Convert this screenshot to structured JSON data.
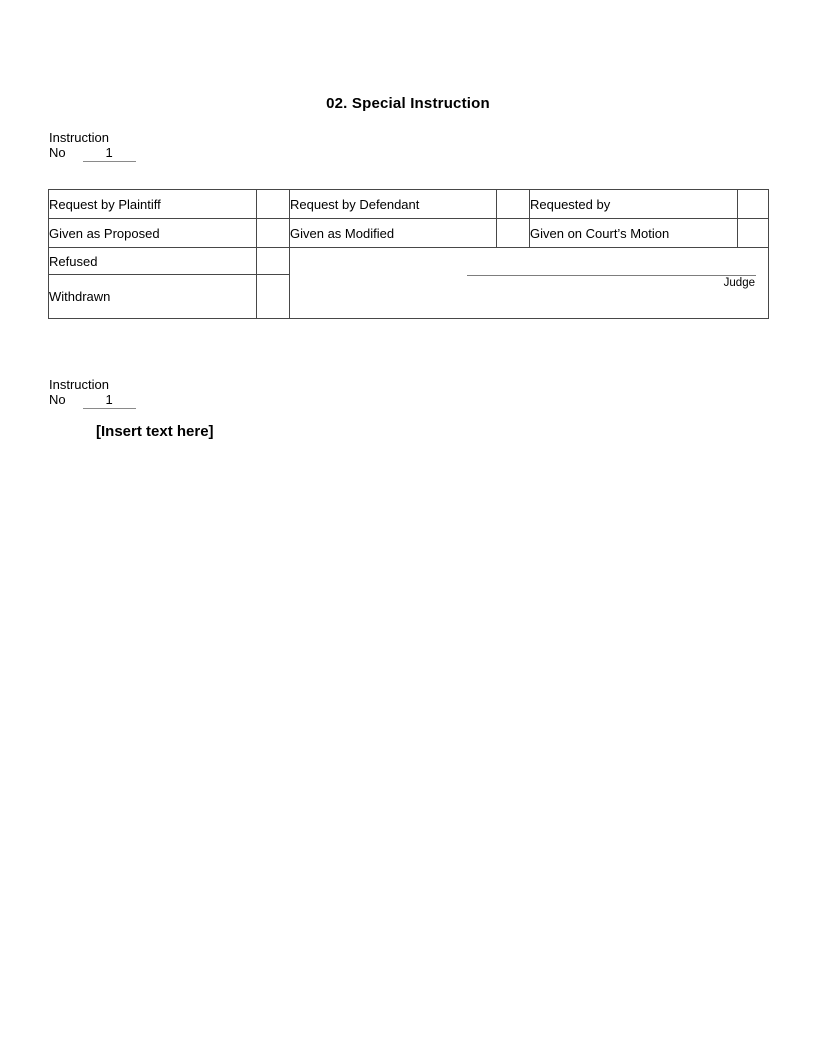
{
  "document": {
    "title": "02. Special Instruction"
  },
  "instruction_no_top": {
    "label_line1": "Instruction",
    "label_line2": "No",
    "value": "1"
  },
  "table": {
    "rows": [
      {
        "cells": [
          "Request by Plaintiff",
          "Request by Defendant",
          "Requested by"
        ]
      },
      {
        "cells": [
          "Given as Proposed",
          "Given as Modified",
          "Given on Court’s Motion"
        ]
      },
      {
        "cells": [
          "Refused"
        ]
      },
      {
        "cells": [
          "Withdrawn"
        ]
      }
    ],
    "signature_label": "Judge"
  },
  "instruction_no_body": {
    "label_line1": "Instruction",
    "label_line2": "No",
    "value": "1"
  },
  "body": {
    "insert_placeholder": "[Insert text here]"
  }
}
